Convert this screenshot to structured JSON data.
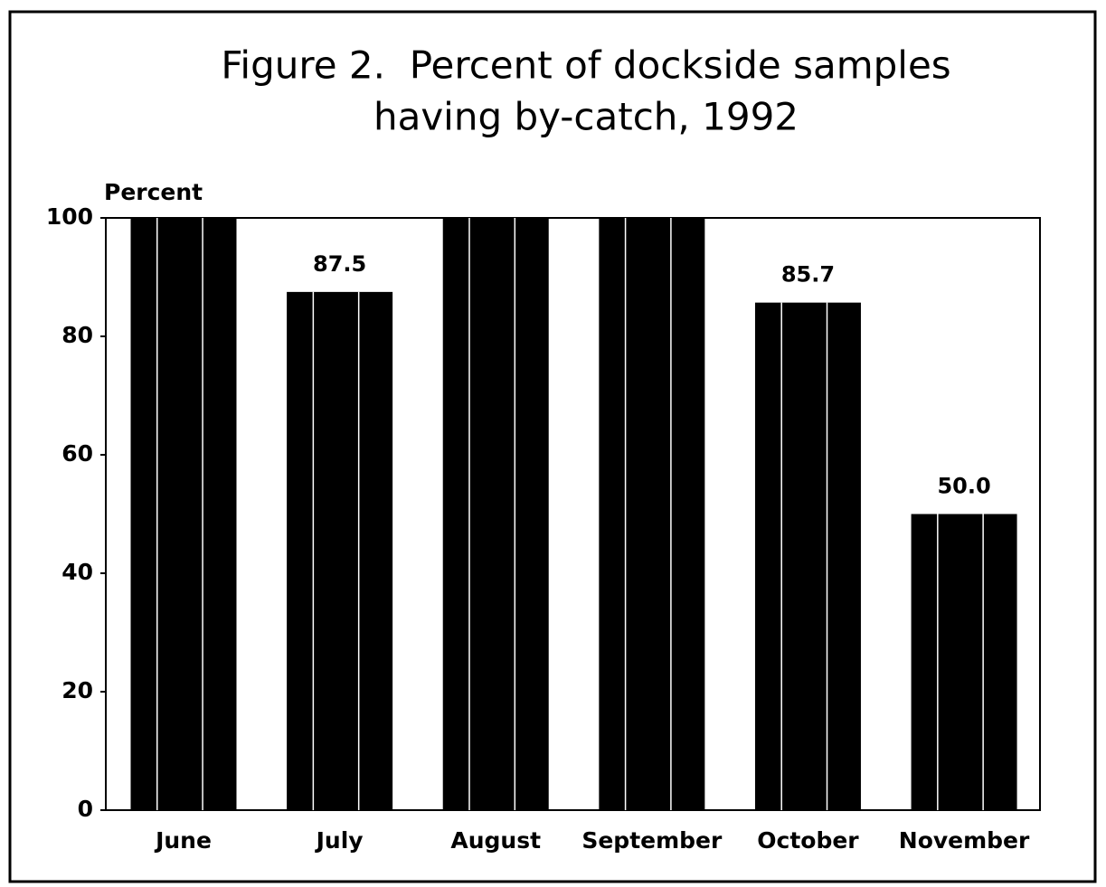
{
  "chart_data": {
    "type": "bar",
    "title": [
      "Figure 2.  Percent of dockside samples",
      "having by-catch, 1992"
    ],
    "y_label": "Percent",
    "categories": [
      "June",
      "July",
      "August",
      "September",
      "October",
      "November"
    ],
    "values": [
      100,
      87.5,
      100,
      100,
      85.7,
      50.0
    ],
    "value_labels": [
      null,
      "87.5",
      null,
      null,
      "85.7",
      "50.0"
    ],
    "color": "#000000",
    "ylim": [
      0,
      100
    ],
    "yticks": [
      0,
      20,
      40,
      60,
      80,
      100
    ],
    "grid": false
  }
}
